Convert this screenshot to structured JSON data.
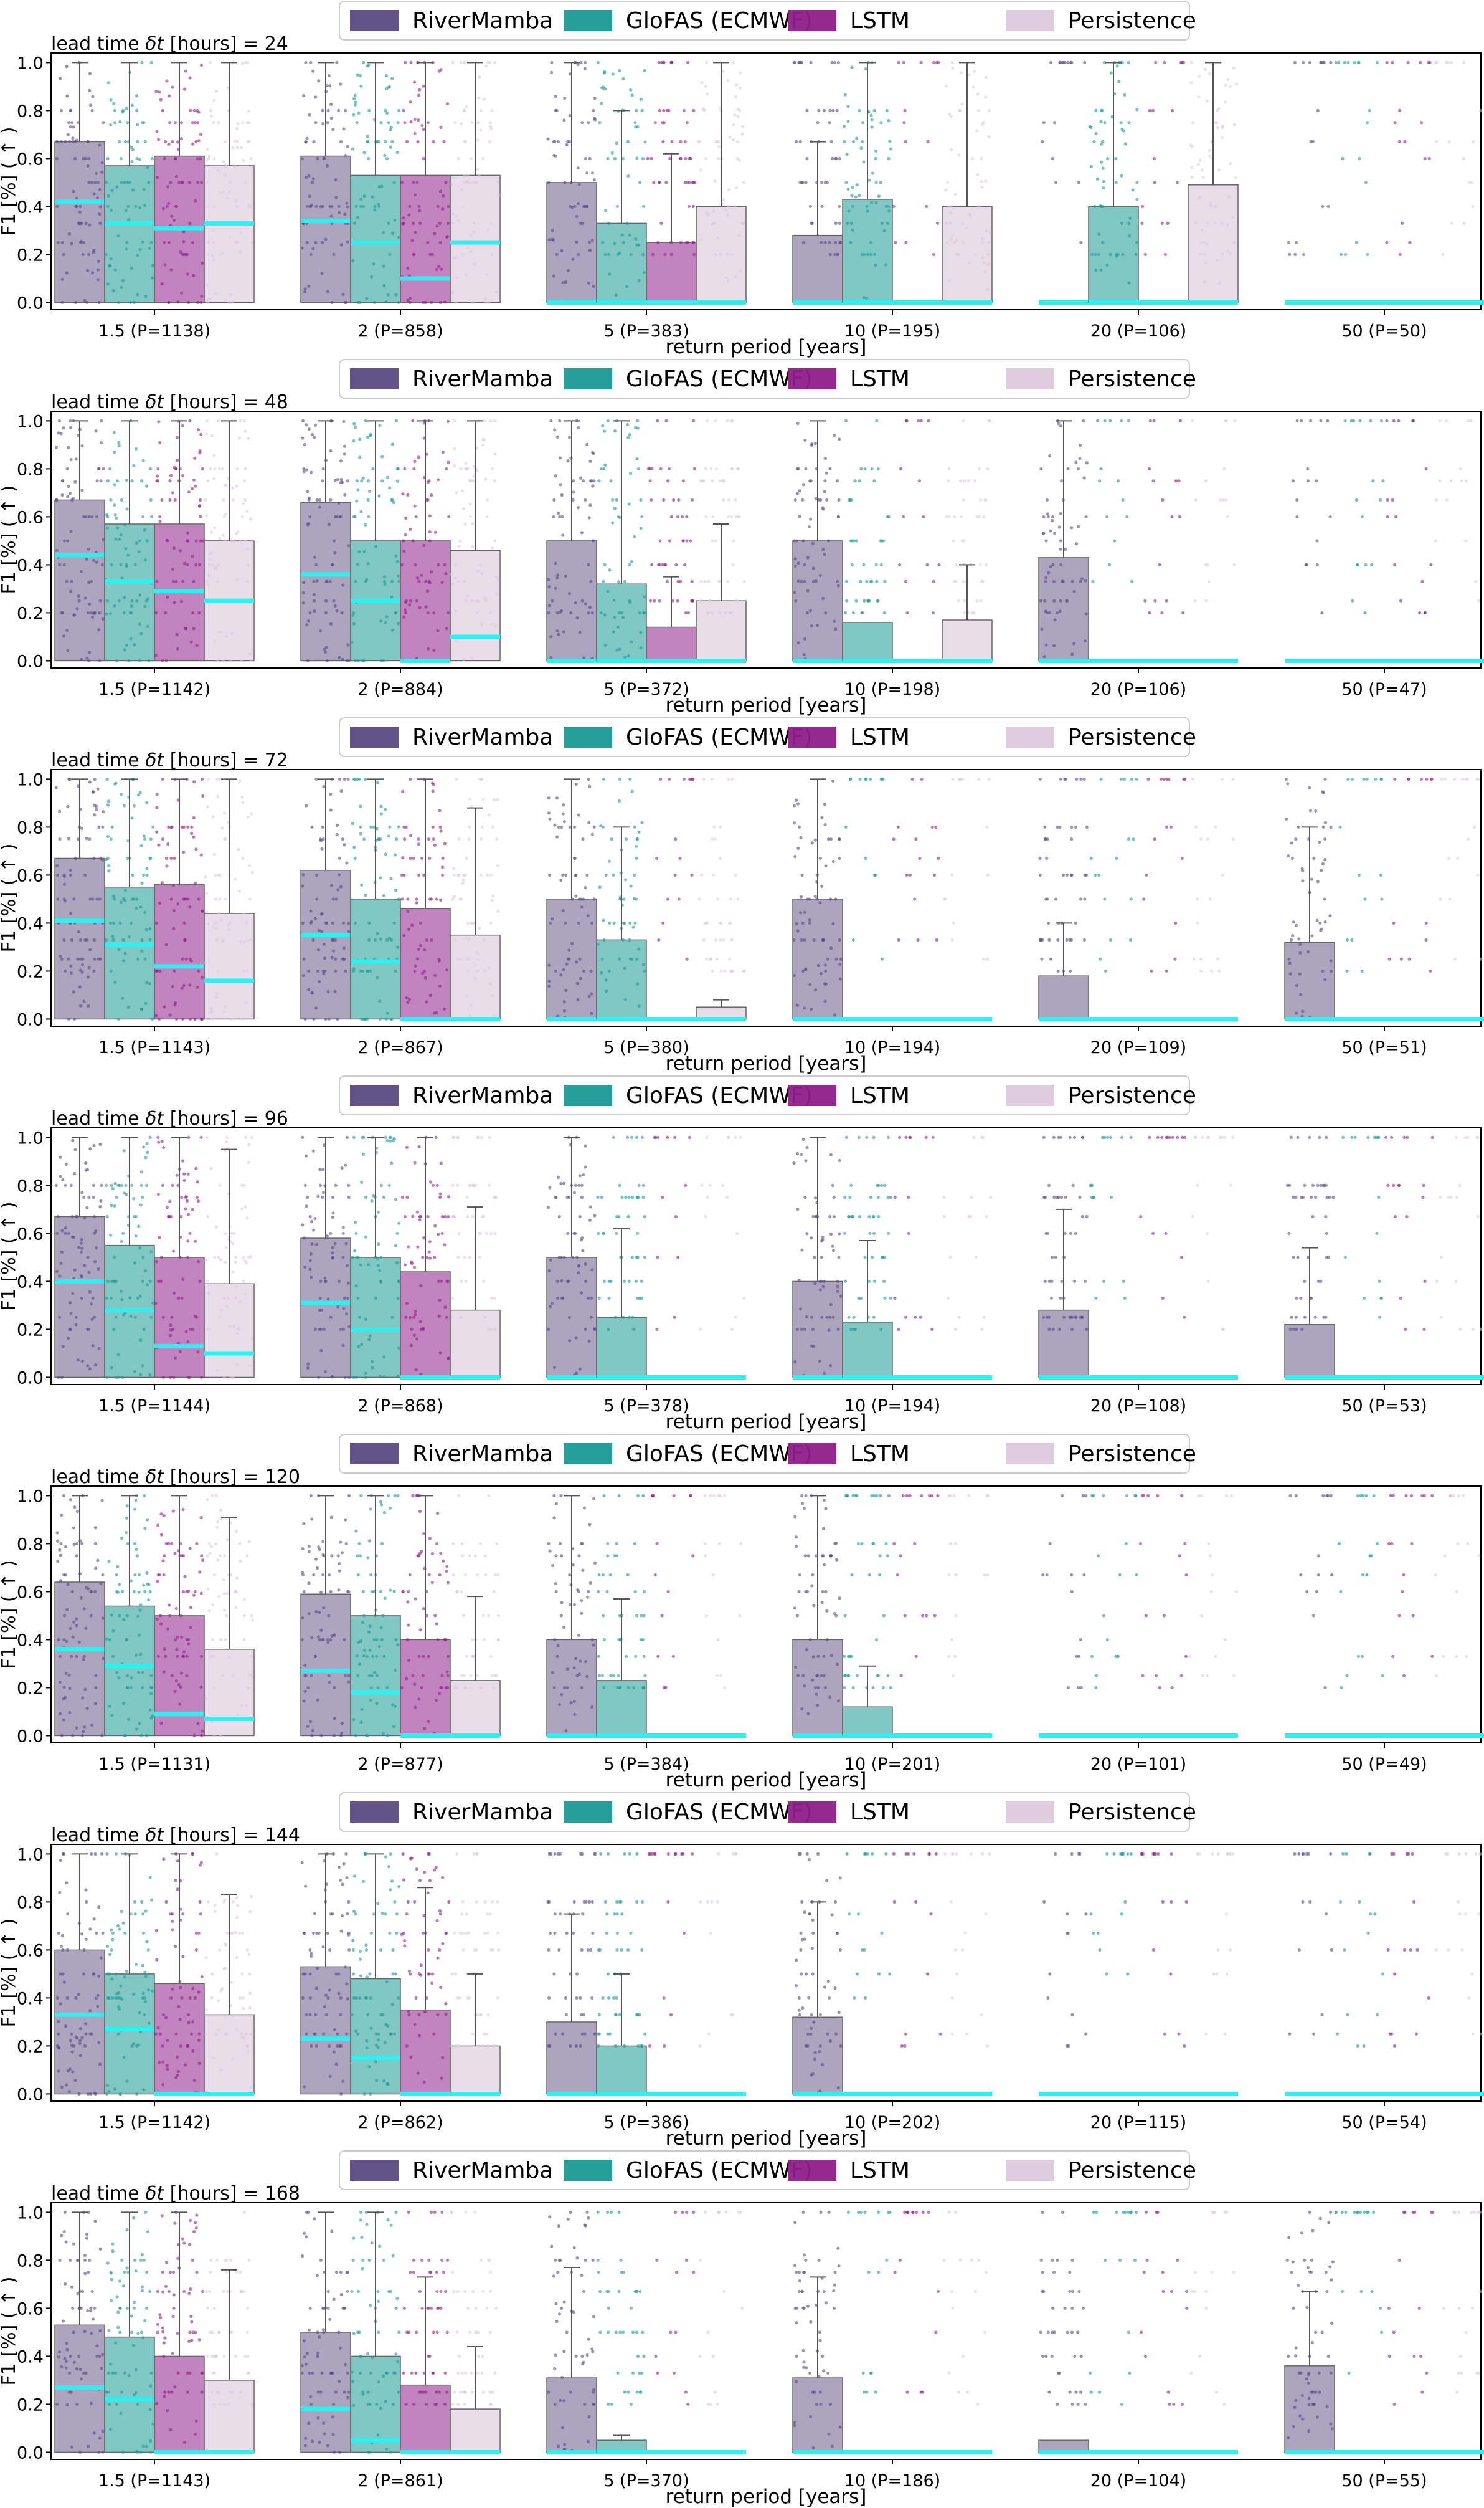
{
  "figure": {
    "xlabel": "return period [years]",
    "ylabel": "F1 [%] ( ↑ )",
    "yticks": [
      "0.0",
      "0.2",
      "0.4",
      "0.6",
      "0.8",
      "1.0"
    ],
    "ylim": [
      -0.03,
      1.04
    ],
    "legend": [
      "RiverMamba",
      "GloFAS (ECMWF)",
      "LSTM",
      "Persistence"
    ],
    "colors": {
      "RiverMamba": "#5b4a82",
      "GloFAS (ECMWF)": "#1a9a96",
      "LSTM": "#8e1f8a",
      "Persistence": "#dcc6dc",
      "median": "#2ff0f0",
      "whisker": "#555555"
    },
    "bar_alpha": [
      0.5,
      0.55,
      0.55,
      0.6
    ]
  },
  "chart_data": [
    {
      "type": "bar",
      "title": "lead time δt [hours] = 24",
      "title_prefix": "lead time",
      "title_suffix": "[hours] = 24",
      "categories": [
        "1.5 (P=1138)",
        "2 (P=858)",
        "5 (P=383)",
        "10 (P=195)",
        "20 (P=106)",
        "50 (P=50)"
      ],
      "series": [
        {
          "name": "RiverMamba",
          "values": [
            0.67,
            0.61,
            0.5,
            0.28,
            0.0,
            0.0
          ],
          "medians": [
            0.42,
            0.34,
            0.0,
            0.0,
            0.0,
            0.0
          ],
          "whiskers": [
            1.0,
            1.0,
            1.0,
            0.67,
            0.0,
            0.0
          ]
        },
        {
          "name": "GloFAS (ECMWF)",
          "values": [
            0.57,
            0.53,
            0.33,
            0.43,
            0.4,
            0.0
          ],
          "medians": [
            0.33,
            0.25,
            0.0,
            0.0,
            0.0,
            0.0
          ],
          "whiskers": [
            1.0,
            1.0,
            0.8,
            1.0,
            1.0,
            0.0
          ]
        },
        {
          "name": "LSTM",
          "values": [
            0.61,
            0.53,
            0.25,
            0.0,
            0.0,
            0.0
          ],
          "medians": [
            0.31,
            0.1,
            0.0,
            0.0,
            0.0,
            0.0
          ],
          "whiskers": [
            1.0,
            1.0,
            0.62,
            0.0,
            0.0,
            0.0
          ]
        },
        {
          "name": "Persistence",
          "values": [
            0.57,
            0.53,
            0.4,
            0.4,
            0.49,
            0.0
          ],
          "medians": [
            0.33,
            0.25,
            0.0,
            0.0,
            0.0,
            0.0
          ],
          "whiskers": [
            1.0,
            1.0,
            1.0,
            1.0,
            1.0,
            0.0
          ]
        }
      ],
      "xlabel": "return period [years]",
      "ylabel": "F1 [%] ( ↑ )",
      "ylim": [
        -0.03,
        1.04
      ]
    },
    {
      "type": "bar",
      "title": "lead time δt [hours] = 48",
      "title_prefix": "lead time",
      "title_suffix": "[hours] = 48",
      "categories": [
        "1.5 (P=1142)",
        "2 (P=884)",
        "5 (P=372)",
        "10 (P=198)",
        "20 (P=106)",
        "50 (P=47)"
      ],
      "series": [
        {
          "name": "RiverMamba",
          "values": [
            0.67,
            0.66,
            0.5,
            0.5,
            0.43,
            0.0
          ],
          "medians": [
            0.44,
            0.36,
            0.0,
            0.0,
            0.0,
            0.0
          ],
          "whiskers": [
            1.0,
            1.0,
            1.0,
            1.0,
            1.0,
            0.0
          ]
        },
        {
          "name": "GloFAS (ECMWF)",
          "values": [
            0.57,
            0.5,
            0.32,
            0.16,
            0.0,
            0.0
          ],
          "medians": [
            0.33,
            0.25,
            0.0,
            0.0,
            0.0,
            0.0
          ],
          "whiskers": [
            1.0,
            1.0,
            1.0,
            0.0,
            0.0,
            0.0
          ]
        },
        {
          "name": "LSTM",
          "values": [
            0.57,
            0.5,
            0.14,
            0.0,
            0.0,
            0.0
          ],
          "medians": [
            0.29,
            0.0,
            0.0,
            0.0,
            0.0,
            0.0
          ],
          "whiskers": [
            1.0,
            1.0,
            0.35,
            0.0,
            0.0,
            0.0
          ]
        },
        {
          "name": "Persistence",
          "values": [
            0.5,
            0.46,
            0.25,
            0.17,
            0.0,
            0.0
          ],
          "medians": [
            0.25,
            0.1,
            0.0,
            0.0,
            0.0,
            0.0
          ],
          "whiskers": [
            1.0,
            1.0,
            0.57,
            0.4,
            0.0,
            0.0
          ]
        }
      ],
      "xlabel": "return period [years]",
      "ylabel": "F1 [%] ( ↑ )",
      "ylim": [
        -0.03,
        1.04
      ]
    },
    {
      "type": "bar",
      "title": "lead time δt [hours] = 72",
      "title_prefix": "lead time",
      "title_suffix": "[hours] = 72",
      "categories": [
        "1.5 (P=1143)",
        "2 (P=867)",
        "5 (P=380)",
        "10 (P=194)",
        "20 (P=109)",
        "50 (P=51)"
      ],
      "series": [
        {
          "name": "RiverMamba",
          "values": [
            0.67,
            0.62,
            0.5,
            0.5,
            0.18,
            0.32
          ],
          "medians": [
            0.41,
            0.35,
            0.0,
            0.0,
            0.0,
            0.0
          ],
          "whiskers": [
            1.0,
            1.0,
            1.0,
            1.0,
            0.4,
            0.8
          ]
        },
        {
          "name": "GloFAS (ECMWF)",
          "values": [
            0.55,
            0.5,
            0.33,
            0.0,
            0.0,
            0.0
          ],
          "medians": [
            0.31,
            0.24,
            0.0,
            0.0,
            0.0,
            0.0
          ],
          "whiskers": [
            1.0,
            1.0,
            0.8,
            0.0,
            0.0,
            0.0
          ]
        },
        {
          "name": "LSTM",
          "values": [
            0.56,
            0.46,
            0.0,
            0.0,
            0.0,
            0.0
          ],
          "medians": [
            0.22,
            0.0,
            0.0,
            0.0,
            0.0,
            0.0
          ],
          "whiskers": [
            1.0,
            1.0,
            0.0,
            0.0,
            0.0,
            0.0
          ]
        },
        {
          "name": "Persistence",
          "values": [
            0.44,
            0.35,
            0.05,
            0.0,
            0.0,
            0.0
          ],
          "medians": [
            0.16,
            0.0,
            0.0,
            0.0,
            0.0,
            0.0
          ],
          "whiskers": [
            1.0,
            0.88,
            0.08,
            0.0,
            0.0,
            0.0
          ]
        }
      ],
      "xlabel": "return period [years]",
      "ylabel": "F1 [%] ( ↑ )",
      "ylim": [
        -0.03,
        1.04
      ]
    },
    {
      "type": "bar",
      "title": "lead time δt [hours] = 96",
      "title_prefix": "lead time",
      "title_suffix": "[hours] = 96",
      "categories": [
        "1.5 (P=1144)",
        "2 (P=868)",
        "5 (P=378)",
        "10 (P=194)",
        "20 (P=108)",
        "50 (P=53)"
      ],
      "series": [
        {
          "name": "RiverMamba",
          "values": [
            0.67,
            0.58,
            0.5,
            0.4,
            0.28,
            0.22
          ],
          "medians": [
            0.4,
            0.31,
            0.0,
            0.0,
            0.0,
            0.0
          ],
          "whiskers": [
            1.0,
            1.0,
            1.0,
            1.0,
            0.7,
            0.54
          ]
        },
        {
          "name": "GloFAS (ECMWF)",
          "values": [
            0.55,
            0.5,
            0.25,
            0.23,
            0.0,
            0.0
          ],
          "medians": [
            0.28,
            0.2,
            0.0,
            0.0,
            0.0,
            0.0
          ],
          "whiskers": [
            1.0,
            1.0,
            0.62,
            0.57,
            0.0,
            0.0
          ]
        },
        {
          "name": "LSTM",
          "values": [
            0.5,
            0.44,
            0.0,
            0.0,
            0.0,
            0.0
          ],
          "medians": [
            0.13,
            0.0,
            0.0,
            0.0,
            0.0,
            0.0
          ],
          "whiskers": [
            1.0,
            1.0,
            0.0,
            0.0,
            0.0,
            0.0
          ]
        },
        {
          "name": "Persistence",
          "values": [
            0.39,
            0.28,
            0.0,
            0.0,
            0.0,
            0.0
          ],
          "medians": [
            0.1,
            0.0,
            0.0,
            0.0,
            0.0,
            0.0
          ],
          "whiskers": [
            0.95,
            0.71,
            0.0,
            0.0,
            0.0,
            0.0
          ]
        }
      ],
      "xlabel": "return period [years]",
      "ylabel": "F1 [%] ( ↑ )",
      "ylim": [
        -0.03,
        1.04
      ]
    },
    {
      "type": "bar",
      "title": "lead time δt [hours] = 120",
      "title_prefix": "lead time",
      "title_suffix": "[hours] = 120",
      "categories": [
        "1.5 (P=1131)",
        "2 (P=877)",
        "5 (P=384)",
        "10 (P=201)",
        "20 (P=101)",
        "50 (P=49)"
      ],
      "series": [
        {
          "name": "RiverMamba",
          "values": [
            0.64,
            0.59,
            0.4,
            0.4,
            0.0,
            0.0
          ],
          "medians": [
            0.36,
            0.27,
            0.0,
            0.0,
            0.0,
            0.0
          ],
          "whiskers": [
            1.0,
            1.0,
            1.0,
            1.0,
            0.0,
            0.0
          ]
        },
        {
          "name": "GloFAS (ECMWF)",
          "values": [
            0.54,
            0.5,
            0.23,
            0.12,
            0.0,
            0.0
          ],
          "medians": [
            0.29,
            0.18,
            0.0,
            0.0,
            0.0,
            0.0
          ],
          "whiskers": [
            1.0,
            1.0,
            0.57,
            0.29,
            0.0,
            0.0
          ]
        },
        {
          "name": "LSTM",
          "values": [
            0.5,
            0.4,
            0.0,
            0.0,
            0.0,
            0.0
          ],
          "medians": [
            0.09,
            0.0,
            0.0,
            0.0,
            0.0,
            0.0
          ],
          "whiskers": [
            1.0,
            1.0,
            0.0,
            0.0,
            0.0,
            0.0
          ]
        },
        {
          "name": "Persistence",
          "values": [
            0.36,
            0.23,
            0.0,
            0.0,
            0.0,
            0.0
          ],
          "medians": [
            0.07,
            0.0,
            0.0,
            0.0,
            0.0,
            0.0
          ],
          "whiskers": [
            0.91,
            0.58,
            0.0,
            0.0,
            0.0,
            0.0
          ]
        }
      ],
      "xlabel": "return period [years]",
      "ylabel": "F1 [%] ( ↑ )",
      "ylim": [
        -0.03,
        1.04
      ]
    },
    {
      "type": "bar",
      "title": "lead time δt [hours] = 144",
      "title_prefix": "lead time",
      "title_suffix": "[hours] = 144",
      "categories": [
        "1.5 (P=1142)",
        "2 (P=862)",
        "5 (P=386)",
        "10 (P=202)",
        "20 (P=115)",
        "50 (P=54)"
      ],
      "series": [
        {
          "name": "RiverMamba",
          "values": [
            0.6,
            0.53,
            0.3,
            0.32,
            0.0,
            0.0
          ],
          "medians": [
            0.33,
            0.23,
            0.0,
            0.0,
            0.0,
            0.0
          ],
          "whiskers": [
            1.0,
            1.0,
            0.75,
            0.8,
            0.0,
            0.0
          ]
        },
        {
          "name": "GloFAS (ECMWF)",
          "values": [
            0.5,
            0.48,
            0.2,
            0.0,
            0.0,
            0.0
          ],
          "medians": [
            0.27,
            0.15,
            0.0,
            0.0,
            0.0,
            0.0
          ],
          "whiskers": [
            1.0,
            1.0,
            0.5,
            0.0,
            0.0,
            0.0
          ]
        },
        {
          "name": "LSTM",
          "values": [
            0.46,
            0.35,
            0.0,
            0.0,
            0.0,
            0.0
          ],
          "medians": [
            0.0,
            0.0,
            0.0,
            0.0,
            0.0,
            0.0
          ],
          "whiskers": [
            1.0,
            0.86,
            0.0,
            0.0,
            0.0,
            0.0
          ]
        },
        {
          "name": "Persistence",
          "values": [
            0.33,
            0.2,
            0.0,
            0.0,
            0.0,
            0.0
          ],
          "medians": [
            0.0,
            0.0,
            0.0,
            0.0,
            0.0,
            0.0
          ],
          "whiskers": [
            0.83,
            0.5,
            0.0,
            0.0,
            0.0,
            0.0
          ]
        }
      ],
      "xlabel": "return period [years]",
      "ylabel": "F1 [%] ( ↑ )",
      "ylim": [
        -0.03,
        1.04
      ]
    },
    {
      "type": "bar",
      "title": "lead time δt [hours] = 168",
      "title_prefix": "lead time",
      "title_suffix": "[hours] = 168",
      "categories": [
        "1.5 (P=1143)",
        "2 (P=861)",
        "5 (P=370)",
        "10 (P=186)",
        "20 (P=104)",
        "50 (P=55)"
      ],
      "series": [
        {
          "name": "RiverMamba",
          "values": [
            0.53,
            0.5,
            0.31,
            0.31,
            0.05,
            0.36
          ],
          "medians": [
            0.27,
            0.18,
            0.0,
            0.0,
            0.0,
            0.0
          ],
          "whiskers": [
            1.0,
            1.0,
            0.77,
            0.73,
            0.0,
            0.67
          ]
        },
        {
          "name": "GloFAS (ECMWF)",
          "values": [
            0.48,
            0.4,
            0.05,
            0.0,
            0.0,
            0.0
          ],
          "medians": [
            0.22,
            0.05,
            0.0,
            0.0,
            0.0,
            0.0
          ],
          "whiskers": [
            1.0,
            1.0,
            0.07,
            0.0,
            0.0,
            0.0
          ]
        },
        {
          "name": "LSTM",
          "values": [
            0.4,
            0.28,
            0.0,
            0.0,
            0.0,
            0.0
          ],
          "medians": [
            0.0,
            0.0,
            0.0,
            0.0,
            0.0,
            0.0
          ],
          "whiskers": [
            1.0,
            0.73,
            0.0,
            0.0,
            0.0,
            0.0
          ]
        },
        {
          "name": "Persistence",
          "values": [
            0.3,
            0.18,
            0.0,
            0.0,
            0.0,
            0.0
          ],
          "medians": [
            0.0,
            0.0,
            0.0,
            0.0,
            0.0,
            0.0
          ],
          "whiskers": [
            0.76,
            0.44,
            0.0,
            0.0,
            0.0,
            0.0
          ]
        }
      ],
      "xlabel": "return period [years]",
      "ylabel": "F1 [%] ( ↑ )",
      "ylim": [
        -0.03,
        1.04
      ]
    }
  ]
}
